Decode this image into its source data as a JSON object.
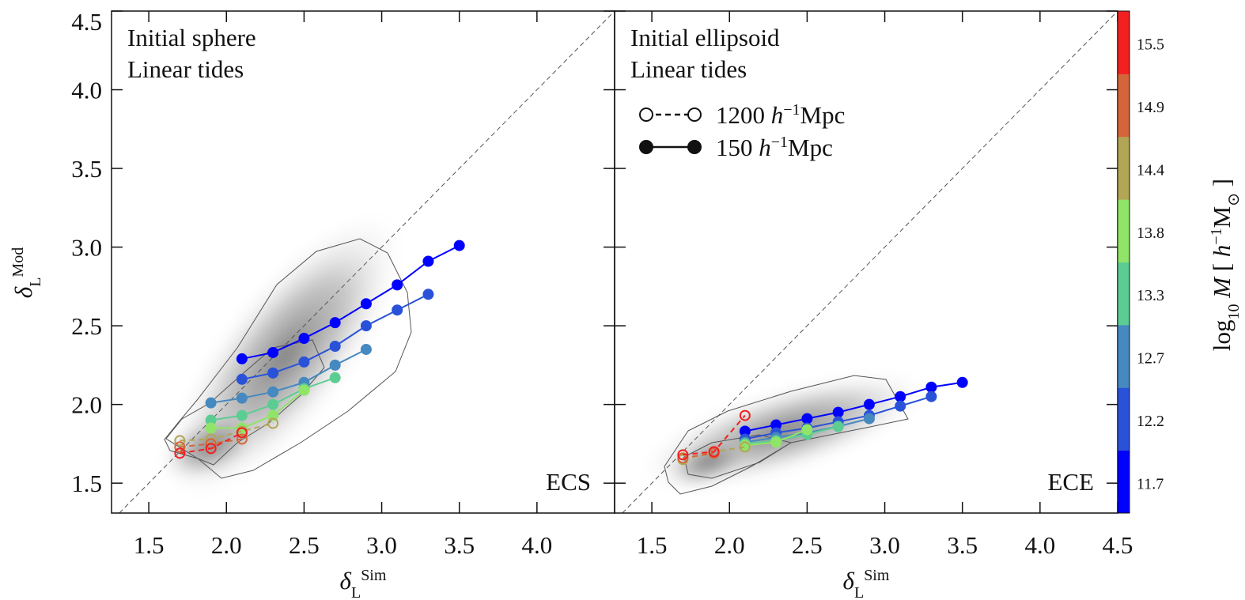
{
  "chart_data": [
    {
      "type": "line",
      "title": [
        "Initial sphere",
        "Linear tides"
      ],
      "corner_label": "ECS",
      "xlabel": [
        {
          "t": "δ",
          "style": "italic"
        },
        {
          "t": "L",
          "pos": "sub"
        },
        {
          "t": "Sim",
          "pos": "sup"
        }
      ],
      "ylabel": [
        {
          "t": "δ",
          "style": "italic"
        },
        {
          "t": "L",
          "pos": "sub"
        },
        {
          "t": "Mod",
          "pos": "sup"
        }
      ],
      "xlim": [
        1.26,
        4.5
      ],
      "ylim": [
        1.31,
        4.5
      ],
      "xticks": [
        1.5,
        {
          "value": 2,
          "label": "2.0"
        },
        2.5,
        {
          "value": 3,
          "label": "3.0"
        },
        3.5,
        {
          "value": 4,
          "label": "4.0"
        }
      ],
      "yticks": [
        1.5,
        {
          "value": 2,
          "label": "2.0"
        },
        2.5,
        {
          "value": 3,
          "label": "3.0"
        },
        3.5,
        {
          "value": 4,
          "label": "4.0"
        },
        4.5
      ],
      "ytick_labels": true,
      "series": [
        {
          "color": "#0000ff",
          "style": "solid",
          "x": [
            2.1,
            2.3,
            2.5,
            2.7,
            2.9,
            3.1,
            3.3,
            3.5
          ],
          "values": [
            2.29,
            2.33,
            2.42,
            2.52,
            2.64,
            2.76,
            2.91,
            3.01
          ]
        },
        {
          "color": "#2a52d8",
          "style": "solid",
          "x": [
            2.1,
            2.3,
            2.5,
            2.7,
            2.9,
            3.1,
            3.3
          ],
          "values": [
            2.16,
            2.2,
            2.27,
            2.37,
            2.5,
            2.6,
            2.7
          ]
        },
        {
          "color": "#4589c0",
          "style": "solid",
          "x": [
            1.9,
            2.1,
            2.3,
            2.5,
            2.7,
            2.9
          ],
          "values": [
            2.01,
            2.04,
            2.08,
            2.14,
            2.25,
            2.35
          ]
        },
        {
          "color": "#5ccd92",
          "style": "solid",
          "x": [
            1.9,
            2.1,
            2.3,
            2.5,
            2.7
          ],
          "values": [
            1.9,
            1.93,
            2.0,
            2.1,
            2.17
          ]
        },
        {
          "color": "#90e468",
          "style": "solid",
          "x": [
            1.9,
            2.1,
            2.3,
            2.5
          ],
          "values": [
            1.85,
            1.85,
            1.93,
            2.09
          ]
        },
        {
          "color": "#b3a556",
          "style": "dashed",
          "x": [
            1.7,
            1.9,
            2.1,
            2.3
          ],
          "values": [
            1.77,
            1.78,
            1.83,
            1.88
          ]
        },
        {
          "color": "#d2663a",
          "style": "dashed",
          "x": [
            1.7,
            1.9,
            2.1
          ],
          "values": [
            1.73,
            1.75,
            1.78
          ]
        },
        {
          "color": "#f22020",
          "style": "dashed",
          "x": [
            1.7,
            1.9,
            2.1
          ],
          "values": [
            1.69,
            1.72,
            1.82
          ]
        }
      ]
    },
    {
      "type": "line",
      "title": [
        "Initial ellipsoid",
        "Linear tides"
      ],
      "corner_label": "ECE",
      "xlabel": [
        {
          "t": "δ",
          "style": "italic"
        },
        {
          "t": "L",
          "pos": "sub"
        },
        {
          "t": "Sim",
          "pos": "sup"
        }
      ],
      "xlim": [
        1.26,
        4.5
      ],
      "ylim": [
        1.31,
        4.5
      ],
      "xticks": [
        1.5,
        {
          "value": 2,
          "label": "2.0"
        },
        2.5,
        {
          "value": 3,
          "label": "3.0"
        },
        3.5,
        {
          "value": 4,
          "label": "4.0"
        },
        4.5
      ],
      "yticks": [
        1.5,
        2,
        2.5,
        3,
        3.5,
        4,
        4.5
      ],
      "ytick_labels": false,
      "legend": [
        {
          "style": "dashed",
          "label": [
            {
              "t": "1200 "
            },
            {
              "t": "h",
              "style": "italic"
            },
            {
              "t": "−1",
              "pos": "sup"
            },
            {
              "t": "Mpc"
            }
          ]
        },
        {
          "style": "solid",
          "label": [
            {
              "t": "150 "
            },
            {
              "t": "h",
              "style": "italic"
            },
            {
              "t": "−1",
              "pos": "sup"
            },
            {
              "t": "Mpc"
            }
          ]
        }
      ],
      "series": [
        {
          "color": "#0000ff",
          "style": "solid",
          "x": [
            2.1,
            2.3,
            2.5,
            2.7,
            2.9,
            3.1,
            3.3,
            3.5
          ],
          "values": [
            1.83,
            1.87,
            1.91,
            1.95,
            2.0,
            2.05,
            2.11,
            2.14
          ]
        },
        {
          "color": "#2a52d8",
          "style": "solid",
          "x": [
            2.1,
            2.3,
            2.5,
            2.7,
            2.9,
            3.1,
            3.3
          ],
          "values": [
            1.78,
            1.82,
            1.85,
            1.89,
            1.93,
            1.99,
            2.05
          ]
        },
        {
          "color": "#4589c0",
          "style": "solid",
          "x": [
            2.1,
            2.3,
            2.5,
            2.7,
            2.9
          ],
          "values": [
            1.76,
            1.79,
            1.82,
            1.86,
            1.91
          ]
        },
        {
          "color": "#5ccd92",
          "style": "solid",
          "x": [
            2.1,
            2.3,
            2.5,
            2.7
          ],
          "values": [
            1.75,
            1.77,
            1.81,
            1.86
          ]
        },
        {
          "color": "#90e468",
          "style": "solid",
          "x": [
            2.1,
            2.3,
            2.5
          ],
          "values": [
            1.74,
            1.76,
            1.84
          ]
        },
        {
          "color": "#b3a556",
          "style": "dashed",
          "x": [
            1.7,
            1.9,
            2.1
          ],
          "values": [
            1.65,
            1.7,
            1.73
          ]
        },
        {
          "color": "#d2663a",
          "style": "dashed",
          "x": [
            1.7,
            1.9
          ],
          "values": [
            1.66,
            1.69
          ]
        },
        {
          "color": "#f22020",
          "style": "dashed",
          "x": [
            1.7,
            1.9,
            2.1
          ],
          "values": [
            1.68,
            1.7,
            1.93
          ]
        }
      ],
      "colorbar": {
        "ticks": [
          11.7,
          12.2,
          12.7,
          13.3,
          13.8,
          14.4,
          14.9,
          15.5
        ],
        "colors": [
          "#0000ff",
          "#2a52d8",
          "#4589c0",
          "#5ccd92",
          "#90e468",
          "#b3a556",
          "#d2663a",
          "#f22020"
        ],
        "label": [
          {
            "t": "log"
          },
          {
            "t": "10",
            "pos": "sub"
          },
          {
            "t": " M ",
            "style": "italic"
          },
          {
            "t": "[ "
          },
          {
            "t": "h",
            "style": "italic"
          },
          {
            "t": "−1",
            "pos": "sup"
          },
          {
            "t": "M"
          },
          {
            "t": "⊙",
            "pos": "sub"
          },
          {
            "t": " ]"
          }
        ]
      }
    }
  ]
}
